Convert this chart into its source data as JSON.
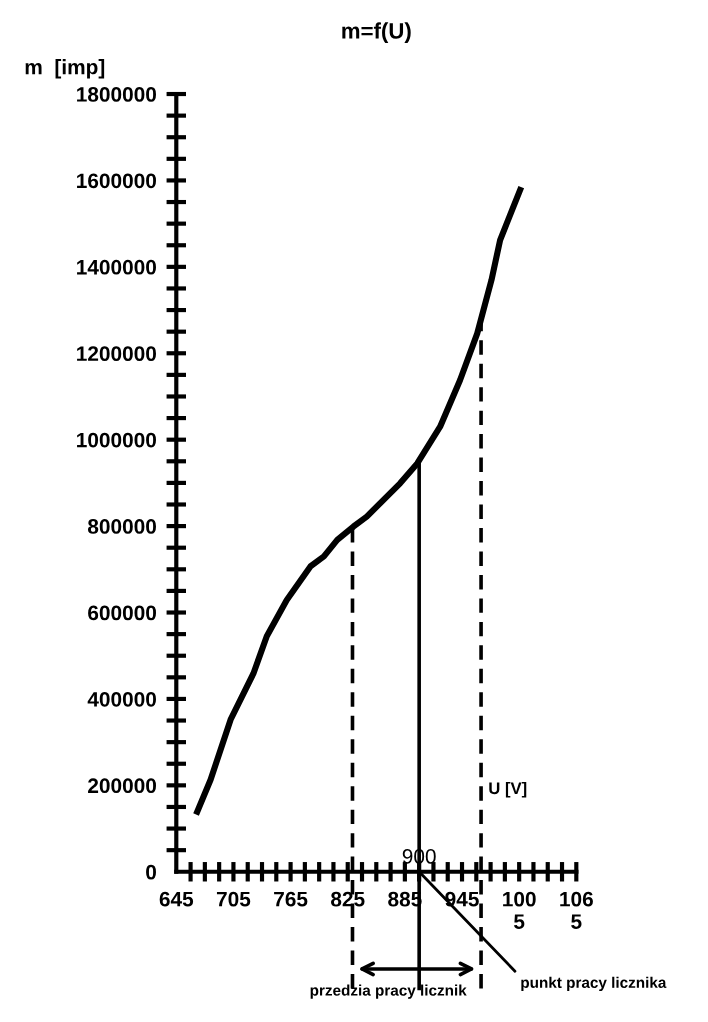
{
  "chart_data": {
    "type": "line",
    "title": "m=f(U)",
    "ylabel": "m  [imp]",
    "xlabel": "U [V]",
    "x": [
      667,
      681,
      702,
      726,
      740,
      761,
      786,
      800,
      814,
      831,
      845,
      880,
      898,
      922,
      943,
      961,
      976,
      985,
      1006
    ],
    "series": [
      {
        "color": "#000000",
        "values": [
          139000,
          213000,
          352000,
          459000,
          545000,
          629000,
          707000,
          730000,
          768000,
          799000,
          822000,
          899000,
          945000,
          1030000,
          1138000,
          1246000,
          1370000,
          1462000,
          1578000
        ]
      }
    ],
    "xlim": [
      645,
      1065
    ],
    "xticks": [
      645,
      {
        "value": 660,
        "label": null
      },
      {
        "value": 675,
        "label": null
      },
      {
        "value": 690,
        "label": null
      },
      705,
      {
        "value": 720,
        "label": null
      },
      {
        "value": 735,
        "label": null
      },
      {
        "value": 750,
        "label": null
      },
      765,
      {
        "value": 780,
        "label": null
      },
      {
        "value": 795,
        "label": null
      },
      {
        "value": 810,
        "label": null
      },
      825,
      {
        "value": 840,
        "label": null
      },
      {
        "value": 855,
        "label": null
      },
      {
        "value": 870,
        "label": null
      },
      885,
      {
        "value": 900,
        "label": null
      },
      {
        "value": 915,
        "label": null
      },
      {
        "value": 930,
        "label": null
      },
      945,
      {
        "value": 960,
        "label": null
      },
      {
        "value": 975,
        "label": null
      },
      {
        "value": 990,
        "label": null
      },
      {
        "value": 1005,
        "label": "100\n5"
      },
      {
        "value": 1020,
        "label": null
      },
      {
        "value": 1035,
        "label": null
      },
      {
        "value": 1050,
        "label": null
      },
      {
        "value": 1065,
        "label": "106\n5"
      }
    ],
    "ylim": [
      0,
      1800000
    ],
    "yticks": [
      0,
      {
        "value": 50000,
        "label": null
      },
      {
        "value": 100000,
        "label": null
      },
      {
        "value": 150000,
        "label": null
      },
      200000,
      {
        "value": 250000,
        "label": null
      },
      {
        "value": 300000,
        "label": null
      },
      {
        "value": 350000,
        "label": null
      },
      400000,
      {
        "value": 450000,
        "label": null
      },
      {
        "value": 500000,
        "label": null
      },
      {
        "value": 550000,
        "label": null
      },
      600000,
      {
        "value": 650000,
        "label": null
      },
      {
        "value": 700000,
        "label": null
      },
      {
        "value": 750000,
        "label": null
      },
      800000,
      {
        "value": 850000,
        "label": null
      },
      {
        "value": 900000,
        "label": null
      },
      {
        "value": 950000,
        "label": null
      },
      1000000,
      {
        "value": 1050000,
        "label": null
      },
      {
        "value": 1100000,
        "label": null
      },
      {
        "value": 1150000,
        "label": null
      },
      1200000,
      {
        "value": 1250000,
        "label": null
      },
      {
        "value": 1300000,
        "label": null
      },
      {
        "value": 1350000,
        "label": null
      },
      1400000,
      {
        "value": 1450000,
        "label": null
      },
      {
        "value": 1500000,
        "label": null
      },
      {
        "value": 1550000,
        "label": null
      },
      1600000,
      {
        "value": 1650000,
        "label": null
      },
      {
        "value": 1700000,
        "label": null
      },
      {
        "value": 1750000,
        "label": null
      },
      1800000
    ],
    "ref_lines": [
      {
        "axis": "x",
        "value": 830,
        "line_style": "dashed",
        "color": "#000000"
      },
      {
        "axis": "x",
        "value": 900,
        "label": "900",
        "line_style": "solid",
        "color": "#000000"
      },
      {
        "axis": "x",
        "value": 965,
        "line_style": "dashed",
        "color": "#000000"
      }
    ],
    "annotations": [
      "przedzia pracy licznik",
      "punkt pracy licznika"
    ],
    "grid": false,
    "legend": false,
    "marker": "none",
    "line_style": "solid"
  }
}
